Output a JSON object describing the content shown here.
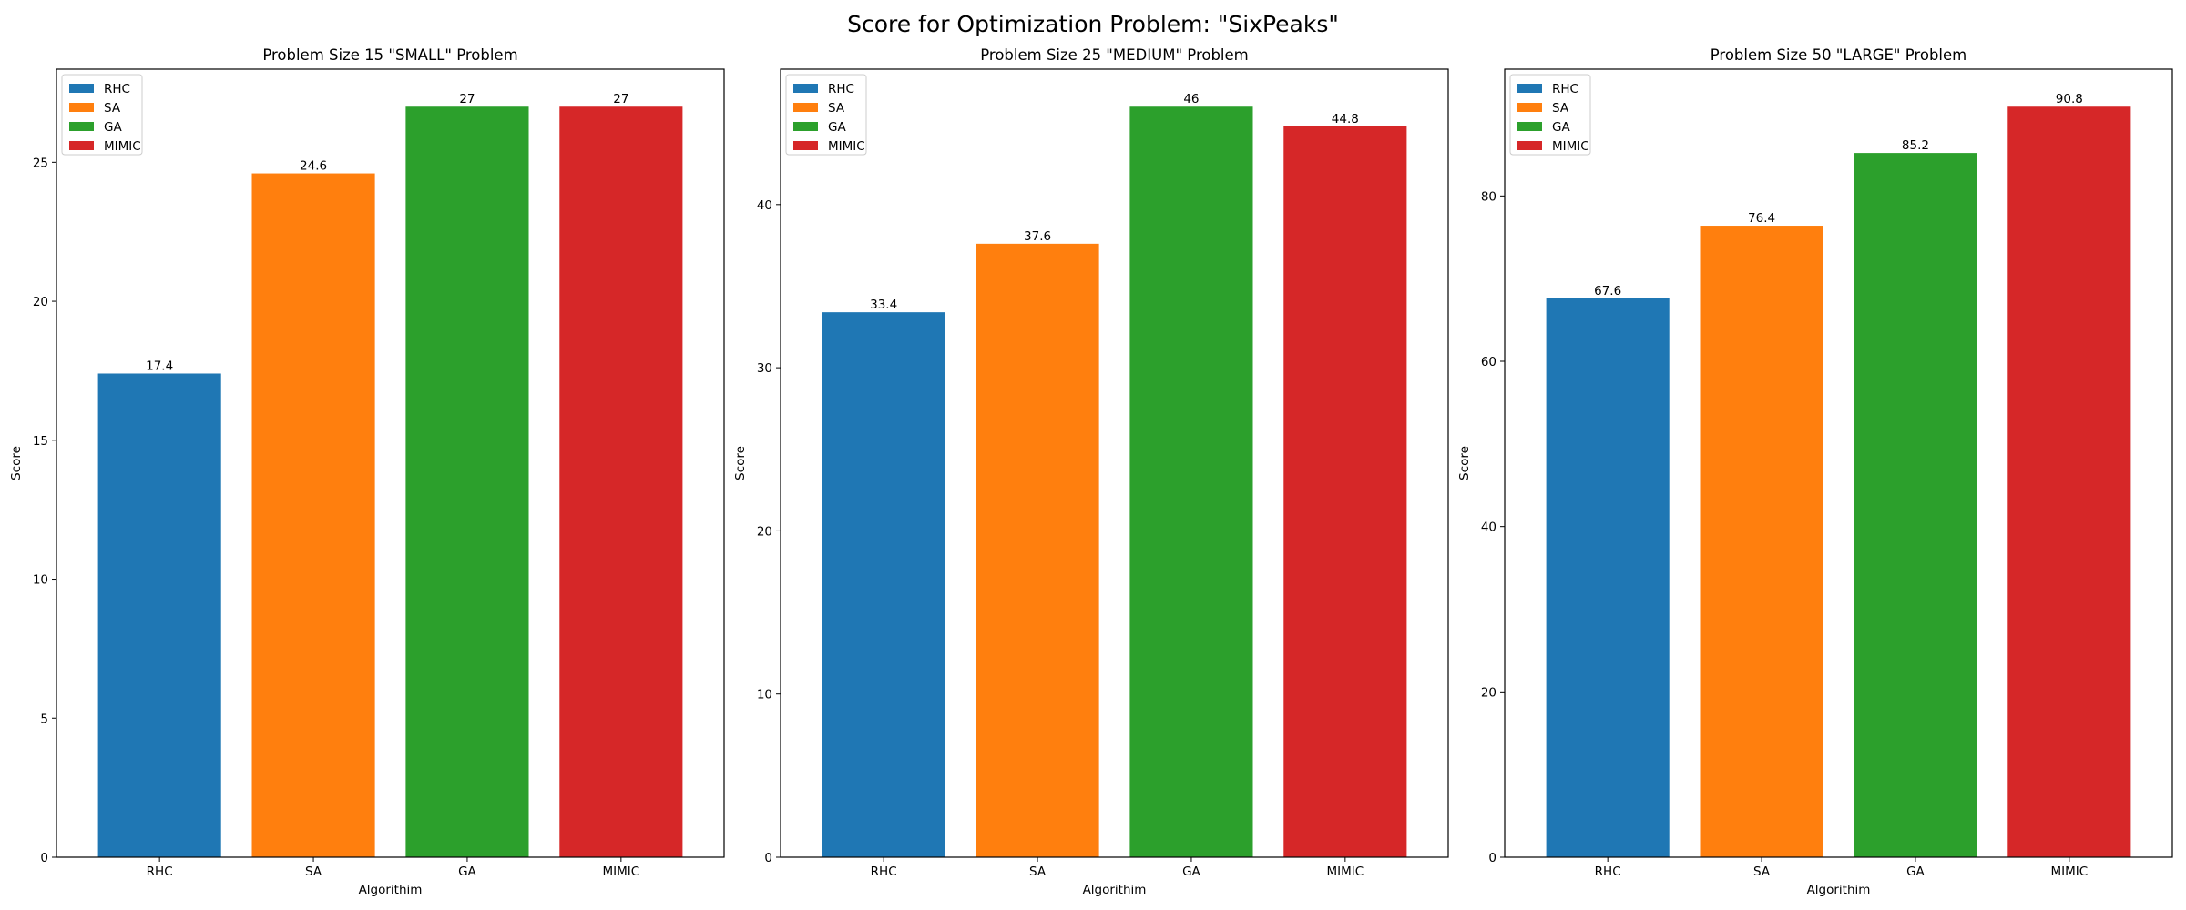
{
  "figure": {
    "suptitle": "Score for Optimization Problem: \"SixPeaks\""
  },
  "colors": {
    "RHC": "#1f77b4",
    "SA": "#ff7f0e",
    "GA": "#2ca02c",
    "MIMIC": "#d62728"
  },
  "chart_data": [
    {
      "type": "bar",
      "title": "Problem Size 15 \"SMALL\" Problem",
      "xlabel": "Algorithim",
      "ylabel": "Score",
      "categories": [
        "RHC",
        "SA",
        "GA",
        "MIMIC"
      ],
      "values": [
        17.4,
        24.6,
        27,
        27
      ],
      "data_labels": [
        "17.4",
        "24.6",
        "27",
        "27"
      ],
      "ylim": [
        0,
        28.35
      ],
      "yticks": [
        0,
        5,
        10,
        15,
        20,
        25
      ],
      "legend": {
        "placement": "upper-left",
        "entries": [
          "RHC",
          "SA",
          "GA",
          "MIMIC"
        ]
      },
      "grid": false
    },
    {
      "type": "bar",
      "title": "Problem Size 25 \"MEDIUM\" Problem",
      "xlabel": "Algorithim",
      "ylabel": "Score",
      "categories": [
        "RHC",
        "SA",
        "GA",
        "MIMIC"
      ],
      "values": [
        33.4,
        37.6,
        46,
        44.8
      ],
      "data_labels": [
        "33.4",
        "37.6",
        "46",
        "44.8"
      ],
      "ylim": [
        0,
        48.3
      ],
      "yticks": [
        0,
        10,
        20,
        30,
        40
      ],
      "legend": {
        "placement": "upper-left",
        "entries": [
          "RHC",
          "SA",
          "GA",
          "MIMIC"
        ]
      },
      "grid": false
    },
    {
      "type": "bar",
      "title": "Problem Size 50 \"LARGE\" Problem",
      "xlabel": "Algorithim",
      "ylabel": "Score",
      "categories": [
        "RHC",
        "SA",
        "GA",
        "MIMIC"
      ],
      "values": [
        67.6,
        76.4,
        85.2,
        90.8
      ],
      "data_labels": [
        "67.6",
        "76.4",
        "85.2",
        "90.8"
      ],
      "ylim": [
        0,
        95.34
      ],
      "yticks": [
        0,
        20,
        40,
        60,
        80
      ],
      "legend": {
        "placement": "upper-left",
        "entries": [
          "RHC",
          "SA",
          "GA",
          "MIMIC"
        ]
      },
      "grid": false
    }
  ]
}
